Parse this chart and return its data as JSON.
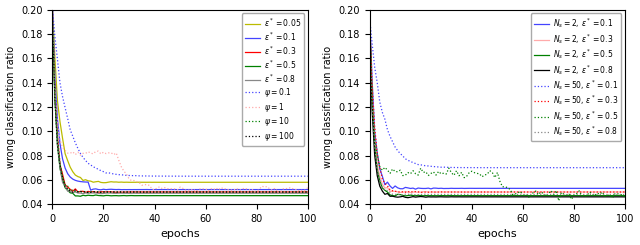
{
  "xlim": [
    0,
    100
  ],
  "ylim": [
    0.04,
    0.2
  ],
  "yticks": [
    0.04,
    0.06,
    0.08,
    0.1,
    0.12,
    0.14,
    0.16,
    0.18,
    0.2
  ],
  "xticks": [
    0,
    20,
    40,
    60,
    80,
    100
  ],
  "xlabel": "epochs",
  "ylabel": "wrong classification ratio",
  "left_legend": [
    {
      "label": "$\\varepsilon^* = 0.05$",
      "color": "#bbbb00",
      "ls": "solid"
    },
    {
      "label": "$\\varepsilon^* = 0.1$",
      "color": "#4444ff",
      "ls": "solid"
    },
    {
      "label": "$\\varepsilon^* = 0.3$",
      "color": "red",
      "ls": "solid"
    },
    {
      "label": "$\\varepsilon^* = 0.5$",
      "color": "green",
      "ls": "solid"
    },
    {
      "label": "$\\varepsilon^* = 0.8$",
      "color": "#888888",
      "ls": "solid"
    },
    {
      "label": "$\\psi = 0.1$",
      "color": "#4444ff",
      "ls": "dotted"
    },
    {
      "label": "$\\psi = 1$",
      "color": "#ffaaaa",
      "ls": "dotted"
    },
    {
      "label": "$\\psi = 10$",
      "color": "green",
      "ls": "dotted"
    },
    {
      "label": "$\\psi = 100$",
      "color": "black",
      "ls": "dotted"
    }
  ],
  "right_legend": [
    {
      "label": "$N_s = 2,\\, \\varepsilon^* = 0.1$",
      "color": "#4444ff",
      "ls": "solid"
    },
    {
      "label": "$N_s = 2,\\, \\varepsilon^* = 0.3$",
      "color": "#ffaaaa",
      "ls": "solid"
    },
    {
      "label": "$N_s = 2,\\, \\varepsilon^* = 0.5$",
      "color": "green",
      "ls": "solid"
    },
    {
      "label": "$N_s = 2,\\, \\varepsilon^* = 0.8$",
      "color": "black",
      "ls": "solid"
    },
    {
      "label": "$N_s = 50,\\, \\varepsilon^* = 0.1$",
      "color": "#4444ff",
      "ls": "dotted"
    },
    {
      "label": "$N_s = 50,\\, \\varepsilon^* = 0.3$",
      "color": "red",
      "ls": "dotted"
    },
    {
      "label": "$N_s = 50,\\, \\varepsilon^* = 0.5$",
      "color": "green",
      "ls": "dotted"
    },
    {
      "label": "$N_s = 50,\\, \\varepsilon^* = 0.8$",
      "color": "#888888",
      "ls": "dotted"
    }
  ]
}
